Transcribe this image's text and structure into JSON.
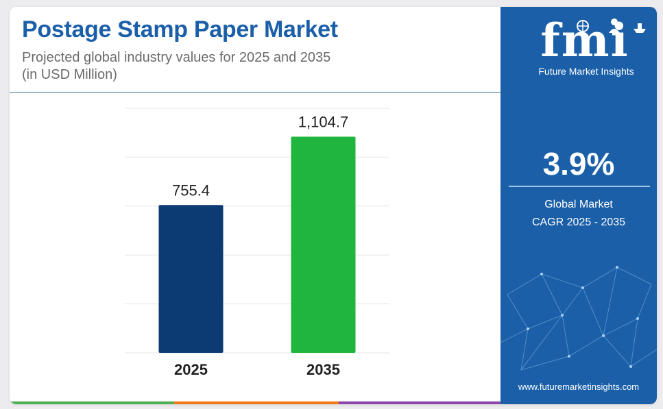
{
  "header": {
    "title": "Postage Stamp Paper Market",
    "subtitle_line1": "Projected global industry values for 2025 and 2035",
    "subtitle_line2": "(in USD Million)"
  },
  "chart_data": {
    "type": "bar",
    "title": "Postage Stamp Paper Market",
    "categories": [
      "2025",
      "2035"
    ],
    "values": [
      755.4,
      1104.7
    ],
    "value_labels": [
      "755.4",
      "1,104.7"
    ],
    "bar_colors": [
      "#0c3a73",
      "#1fb53e"
    ],
    "ylim": [
      0,
      1250
    ],
    "grid": true,
    "xlabel": "",
    "ylabel": ""
  },
  "sidebar": {
    "logo": "fmi",
    "brand_name": "Future Market Insights",
    "cagr_value": "3.9%",
    "cagr_label_line1": "Global Market",
    "cagr_label_line2": "CAGR 2025 - 2035",
    "website": "www.futuremarketinsights.com"
  },
  "colors": {
    "title": "#1a5fa8",
    "sidebar_bg": "#1a5fa8",
    "bar_2025": "#0c3a73",
    "bar_2035": "#1fb53e",
    "bottom_bar": [
      "#4caf50",
      "#f07a1a",
      "#8e44ad"
    ]
  },
  "icons": [
    "globe-icon",
    "person-icon",
    "ship-icon",
    "network-graphic"
  ]
}
